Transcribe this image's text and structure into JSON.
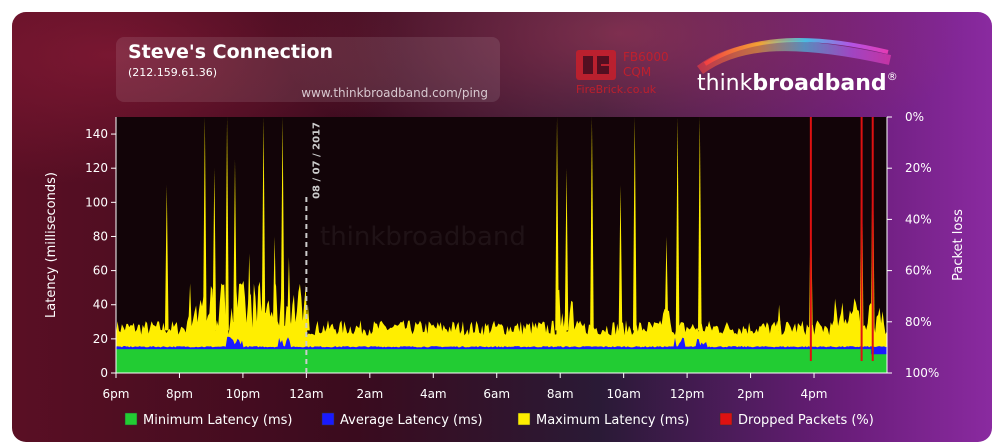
{
  "header": {
    "title": "Steve's Connection",
    "ip": "(212.159.61.36)",
    "url": "www.thinkbroadband.com/ping",
    "brand_think": "think",
    "brand_broadband": "broadband",
    "brand_reg": "®",
    "firebrick_model": "FB6000",
    "firebrick_product": "CQM",
    "firebrick_site": "FireBrick.co.uk",
    "watermark": "thinkbroadband"
  },
  "colors": {
    "min_latency": "#22cc33",
    "avg_latency": "#1a1aff",
    "max_latency": "#ffee00",
    "dropped": "#dd1111",
    "plot_bg": "#120408",
    "axis_text": "#ffffff"
  },
  "chart_data": {
    "type": "area",
    "ylabel": "Latency (milliseconds)",
    "y2label": "Packet loss",
    "ylim": [
      0,
      150
    ],
    "yticks": [
      0,
      20,
      40,
      60,
      80,
      100,
      120,
      140
    ],
    "y2ticks": [
      "0%",
      "20%",
      "40%",
      "60%",
      "80%",
      "100%"
    ],
    "y2range": [
      0,
      100
    ],
    "xlim_hours": [
      18,
      42.3
    ],
    "xticks": [
      {
        "h": 18,
        "label": "6pm"
      },
      {
        "h": 20,
        "label": "8pm"
      },
      {
        "h": 22,
        "label": "10pm"
      },
      {
        "h": 24,
        "label": "12am"
      },
      {
        "h": 26,
        "label": "2am"
      },
      {
        "h": 28,
        "label": "4am"
      },
      {
        "h": 30,
        "label": "6am"
      },
      {
        "h": 32,
        "label": "8am"
      },
      {
        "h": 34,
        "label": "10am"
      },
      {
        "h": 36,
        "label": "12pm"
      },
      {
        "h": 38,
        "label": "2pm"
      },
      {
        "h": 40,
        "label": "4pm"
      }
    ],
    "date_marker": {
      "h": 24,
      "label": "08 / 07 / 2017"
    },
    "series": [
      {
        "name": "Minimum Latency (ms)",
        "key": "min",
        "baseline": 14
      },
      {
        "name": "Average Latency (ms)",
        "key": "avg",
        "baseline": 15
      },
      {
        "name": "Maximum Latency (ms)",
        "key": "max",
        "baseline": 22
      },
      {
        "name": "Dropped Packets (%)",
        "key": "dropped",
        "baseline": 0
      }
    ],
    "max_spikes": [
      {
        "h": 19.6,
        "v": 110
      },
      {
        "h": 20.8,
        "v": 150
      },
      {
        "h": 21.1,
        "v": 120
      },
      {
        "h": 21.5,
        "v": 150
      },
      {
        "h": 21.75,
        "v": 125
      },
      {
        "h": 22.2,
        "v": 70
      },
      {
        "h": 22.65,
        "v": 150
      },
      {
        "h": 23.0,
        "v": 80
      },
      {
        "h": 23.25,
        "v": 150
      },
      {
        "h": 23.45,
        "v": 68
      },
      {
        "h": 24.05,
        "v": 40
      },
      {
        "h": 31.9,
        "v": 150
      },
      {
        "h": 32.2,
        "v": 120
      },
      {
        "h": 33.0,
        "v": 150
      },
      {
        "h": 33.9,
        "v": 110
      },
      {
        "h": 34.35,
        "v": 150
      },
      {
        "h": 35.35,
        "v": 80
      },
      {
        "h": 35.7,
        "v": 150
      },
      {
        "h": 36.4,
        "v": 150
      },
      {
        "h": 38.9,
        "v": 40
      },
      {
        "h": 39.9,
        "v": 110
      },
      {
        "h": 41.5,
        "v": 150
      },
      {
        "h": 41.85,
        "v": 150
      }
    ],
    "max_burst_regions": [
      {
        "h_start": 20.2,
        "h_end": 24.0,
        "v": 55
      },
      {
        "h_start": 31.9,
        "h_end": 32.4,
        "v": 50
      },
      {
        "h_start": 35.2,
        "h_end": 35.5,
        "v": 40
      },
      {
        "h_start": 40.6,
        "h_end": 42.2,
        "v": 45
      }
    ],
    "dropped_spikes": [
      {
        "h": 39.9,
        "v": 100
      },
      {
        "h": 41.5,
        "v": 100
      },
      {
        "h": 41.85,
        "v": 100
      }
    ]
  },
  "legend": [
    {
      "key": "min",
      "label": "Minimum Latency (ms)"
    },
    {
      "key": "avg",
      "label": "Average Latency (ms)"
    },
    {
      "key": "max",
      "label": "Maximum Latency (ms)"
    },
    {
      "key": "dropped",
      "label": "Dropped Packets (%)"
    }
  ]
}
